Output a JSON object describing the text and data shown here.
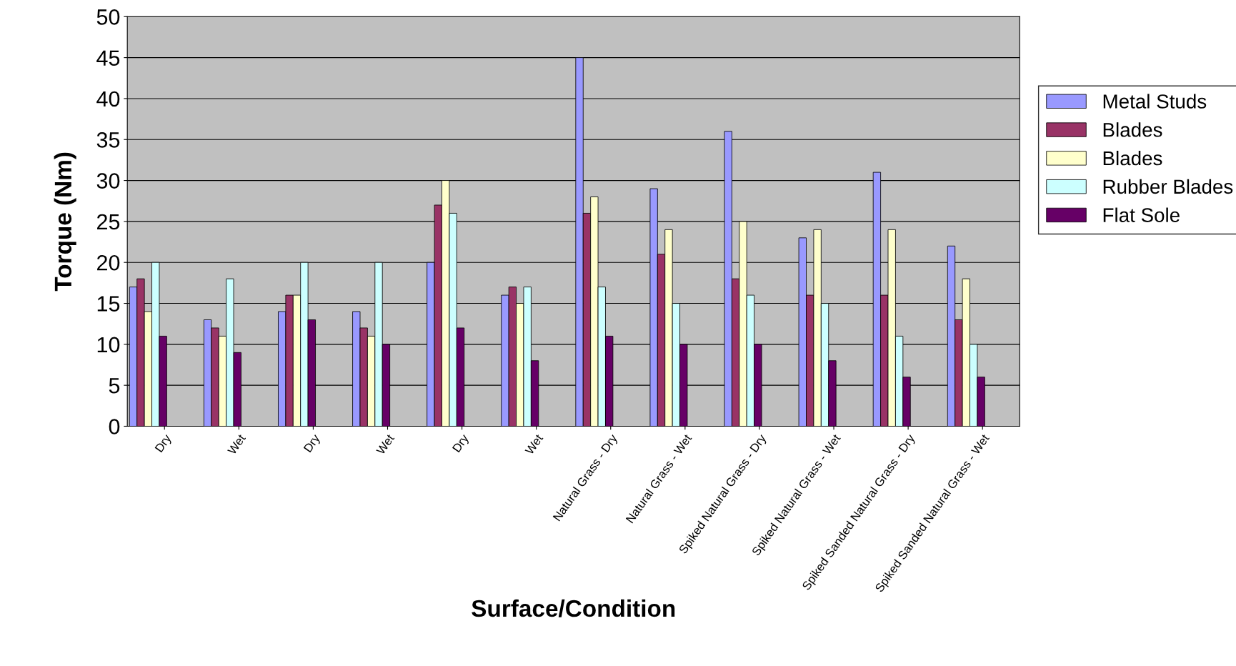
{
  "chart_data": {
    "type": "bar",
    "xlabel": "Surface/Condition",
    "ylabel": "Torque (Nm)",
    "categories": [
      "Dry",
      "Wet",
      "Dry",
      "Wet",
      "Dry",
      "Wet",
      "Natural Grass - Dry",
      "Natural Grass - Wet",
      "Spiked Natural Grass - Dry",
      "Spiked Natural Grass - Wet",
      "Spiked Sanded Natural Grass - Dry",
      "Spiked Sanded Natural Grass - Wet"
    ],
    "series": [
      {
        "name": "Metal Studs",
        "color": "#9999ff",
        "values": [
          17,
          13,
          14,
          14,
          20,
          16,
          45,
          29,
          36,
          23,
          31,
          22
        ]
      },
      {
        "name": "Blades",
        "color": "#993366",
        "values": [
          18,
          12,
          16,
          12,
          27,
          17,
          26,
          21,
          18,
          16,
          16,
          13
        ]
      },
      {
        "name": "Blades",
        "color": "#ffffcc",
        "values": [
          14,
          11,
          16,
          11,
          30,
          15,
          28,
          24,
          25,
          24,
          24,
          18
        ]
      },
      {
        "name": "Rubber Blades",
        "color": "#ccffff",
        "values": [
          20,
          18,
          20,
          20,
          26,
          17,
          17,
          15,
          16,
          15,
          11,
          10
        ]
      },
      {
        "name": "Flat Sole",
        "color": "#660066",
        "values": [
          11,
          9,
          13,
          10,
          12,
          8,
          11,
          10,
          10,
          8,
          6,
          6
        ]
      }
    ],
    "ylim": [
      0,
      50
    ],
    "yticks": [
      0,
      5,
      10,
      15,
      20,
      25,
      30,
      35,
      40,
      45,
      50
    ],
    "grid": "y",
    "legend": "right"
  }
}
